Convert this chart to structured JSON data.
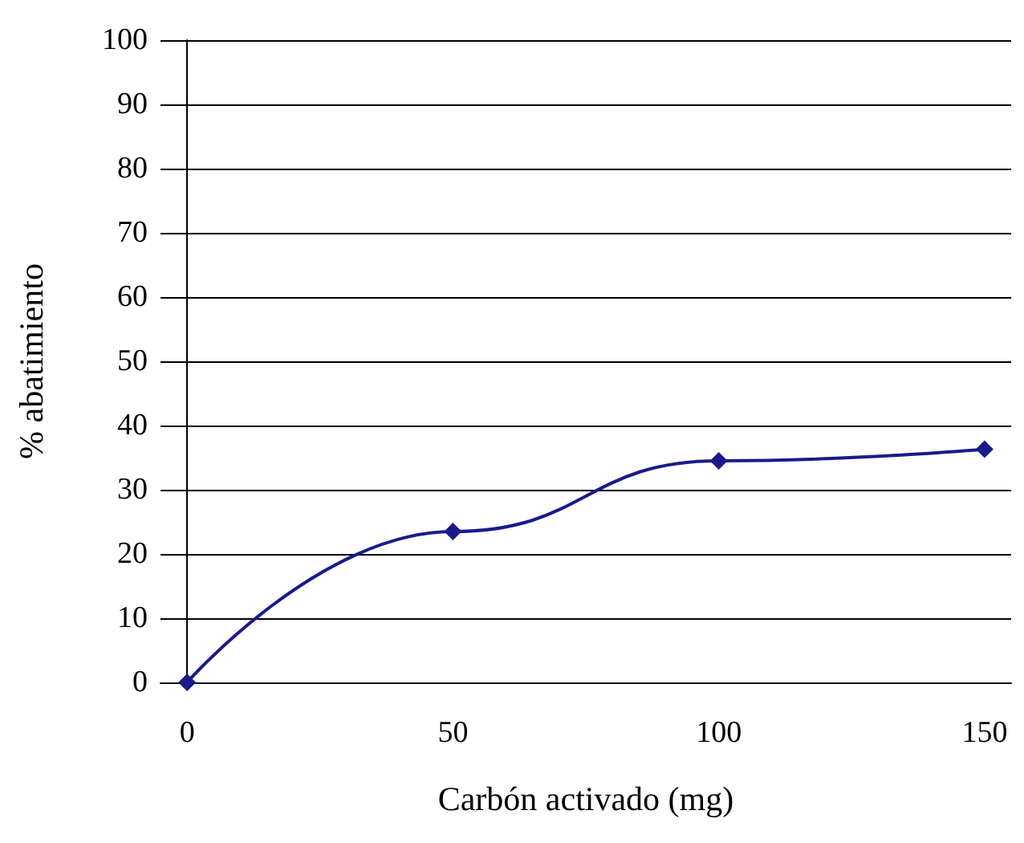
{
  "chart_data": {
    "type": "line",
    "xlabel": "Carbón activado (mg)",
    "ylabel": "% abatimiento",
    "x": [
      0,
      50,
      100,
      150
    ],
    "series": [
      {
        "color": "#1a1a8c",
        "values": [
          0,
          23.5,
          34.5,
          36.3
        ]
      }
    ],
    "xlim": [
      -5,
      155
    ],
    "xticks": [
      0,
      50,
      100,
      150
    ],
    "ylim": [
      0,
      100
    ],
    "yticks": [
      0,
      10,
      20,
      30,
      40,
      50,
      60,
      70,
      80,
      90,
      100
    ],
    "grid": "y",
    "legend": false,
    "marker": "diamond",
    "line_style": "solid"
  }
}
